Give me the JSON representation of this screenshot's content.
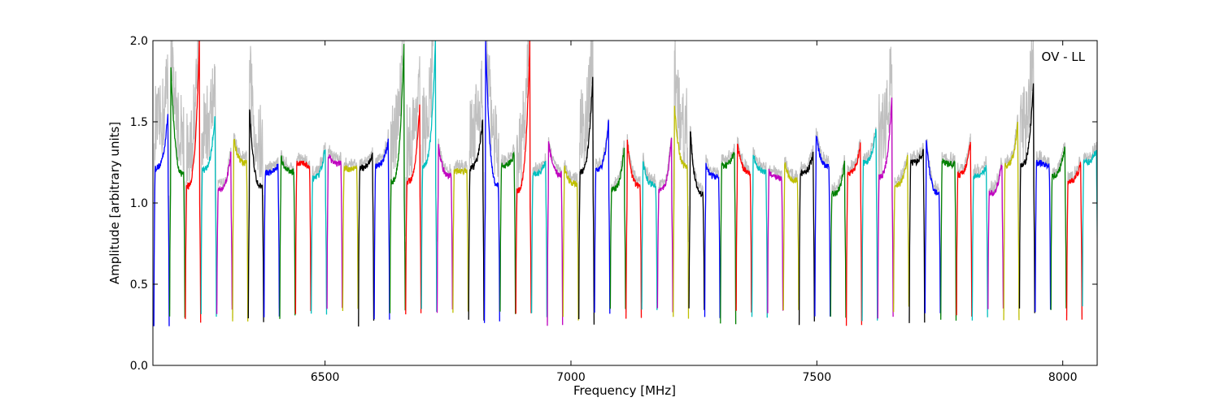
{
  "chart_data": {
    "type": "line",
    "title": "",
    "annotation": "OV - LL",
    "xlabel": "Frequency [MHz]",
    "ylabel": "Amplitude [arbitrary units]",
    "xlim": [
      6150,
      8070
    ],
    "ylim": [
      0.0,
      2.0
    ],
    "xticks": [
      6500,
      7000,
      7500,
      8000
    ],
    "yticks": [
      0.0,
      0.5,
      1.0,
      1.5,
      2.0
    ],
    "xtick_labels": [
      "6500",
      "7000",
      "7500",
      "8000"
    ],
    "ytick_labels": [
      "0.0",
      "0.5",
      "1.0",
      "1.5",
      "2.0"
    ],
    "grid": false,
    "legend": "none",
    "raw_color": "#c0c0c0",
    "channel_colors": [
      "#0000ff",
      "#008000",
      "#ff0000",
      "#00bfbf",
      "#bf00bf",
      "#bfbf00",
      "#000000"
    ],
    "channel_width_mhz": 32,
    "channel_start_mhz": 6152,
    "channel_peaks": [
      1.55,
      1.85,
      2.0,
      1.55,
      1.3,
      1.4,
      1.58,
      1.23,
      1.28,
      1.21,
      1.35,
      1.3,
      1.22,
      1.3,
      1.38,
      2.0,
      1.6,
      2.0,
      1.36,
      1.2,
      1.52,
      2.0,
      1.3,
      2.0,
      1.25,
      1.38,
      1.22,
      1.8,
      1.5,
      1.35,
      1.38,
      1.25,
      1.4,
      1.6,
      1.45,
      1.23,
      1.32,
      1.36,
      1.3,
      1.2,
      1.25,
      1.3,
      1.42,
      1.25,
      1.36,
      1.46,
      1.66,
      1.28,
      1.32,
      1.4,
      1.26,
      1.38,
      1.22,
      1.25,
      1.49,
      1.75,
      1.22,
      1.36,
      1.25,
      1.33
    ]
  }
}
